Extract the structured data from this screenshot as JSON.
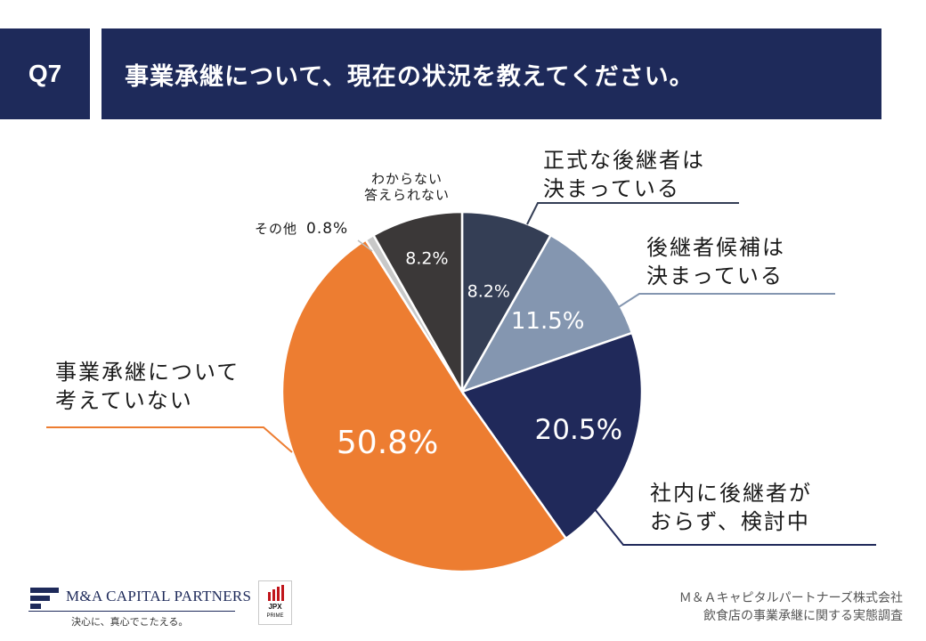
{
  "header": {
    "question_no": "Q7",
    "question_text": "事業承継について、現在の状況を教えてください。"
  },
  "chart_data": {
    "type": "pie",
    "title": "事業承継について、現在の状況を教えてください。",
    "start": "12 o'clock, clockwise",
    "slices": [
      {
        "key": "formal",
        "label": [
          "正式な後継者は",
          "決まっている"
        ],
        "value": 8.2,
        "value_label": "8.2%",
        "color": "#343e55",
        "value_text_color": "#ffffff"
      },
      {
        "key": "candidate",
        "label": [
          "後継者候補は",
          "決まっている"
        ],
        "value": 11.5,
        "value_label": "11.5%",
        "color": "#8496b0",
        "value_text_color": "#ffffff"
      },
      {
        "key": "none",
        "label": [
          "社内に後継者が",
          "おらず、検討中"
        ],
        "value": 20.5,
        "value_label": "20.5%",
        "color": "#20295a",
        "value_text_color": "#ffffff"
      },
      {
        "key": "notyet",
        "label": [
          "事業承継について",
          "考えていない"
        ],
        "value": 50.8,
        "value_label": "50.8%",
        "color": "#ed7d31",
        "value_text_color": "#ffffff"
      },
      {
        "key": "other",
        "label": [
          "その他"
        ],
        "value": 0.8,
        "value_label": "0.8%",
        "color": "#c8c8c8",
        "value_text_color": "#1a1a1a"
      },
      {
        "key": "unknown",
        "label": [
          "わからない",
          "答えられない"
        ],
        "value": 8.2,
        "value_label": "8.2%",
        "color": "#3b3838",
        "value_text_color": "#ffffff"
      }
    ]
  },
  "footer": {
    "company_logo": "M&A CAPITAL PARTNERS",
    "tagline": "決心に、真心でこたえる。",
    "badge_top": "JPX",
    "badge_bottom": "PRIME",
    "source_company": "Ｍ＆Ａキャピタルパートナーズ株式会社",
    "source_survey": "飲食店の事業承継に関する実態調査"
  }
}
